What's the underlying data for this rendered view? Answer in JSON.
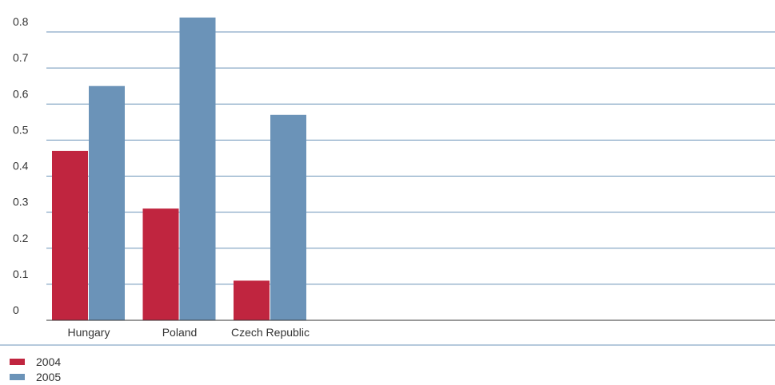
{
  "chart_data": {
    "type": "bar",
    "categories": [
      "Hungary",
      "Poland",
      "Czech Republic"
    ],
    "series": [
      {
        "name": "2004",
        "values": [
          0.47,
          0.31,
          0.11
        ],
        "color": "#c0253f"
      },
      {
        "name": "2005",
        "values": [
          0.65,
          0.84,
          0.57
        ],
        "color": "#6b93b8"
      }
    ],
    "yticks": [
      "0",
      "0.1",
      "0.2",
      "0.3",
      "0.4",
      "0.5",
      "0.6",
      "0.7",
      "0.8"
    ],
    "ylim": [
      0,
      0.8
    ],
    "title": "",
    "xlabel": "",
    "ylabel": "",
    "grid": true,
    "legend_position": "bottom-left",
    "gridline_color": "#6b93b8",
    "axis_color": "#333333"
  }
}
